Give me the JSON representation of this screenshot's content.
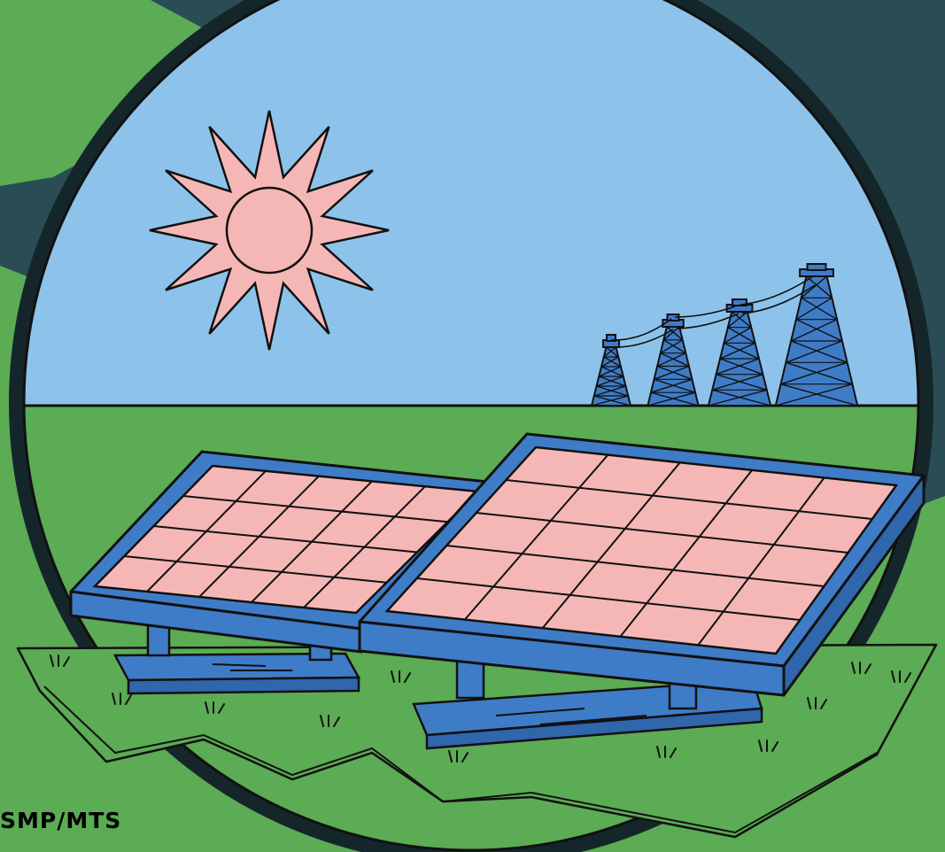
{
  "illustration": {
    "credit": "SMP/MTS",
    "colors": {
      "sky": "#8DC3EA",
      "grass": "#5CAB55",
      "dark_band": "#2A4D55",
      "ring": "#15262B",
      "sun": "#F5B7B6",
      "panel_frame": "#3F7CC7",
      "panel_cell": "#F5B7B6",
      "pylon": "#3F7CC7",
      "outline": "#111111"
    },
    "icons": [
      "sun-icon",
      "solar-panel-icon",
      "transmission-tower-icon",
      "grass-tuft-icon"
    ]
  }
}
